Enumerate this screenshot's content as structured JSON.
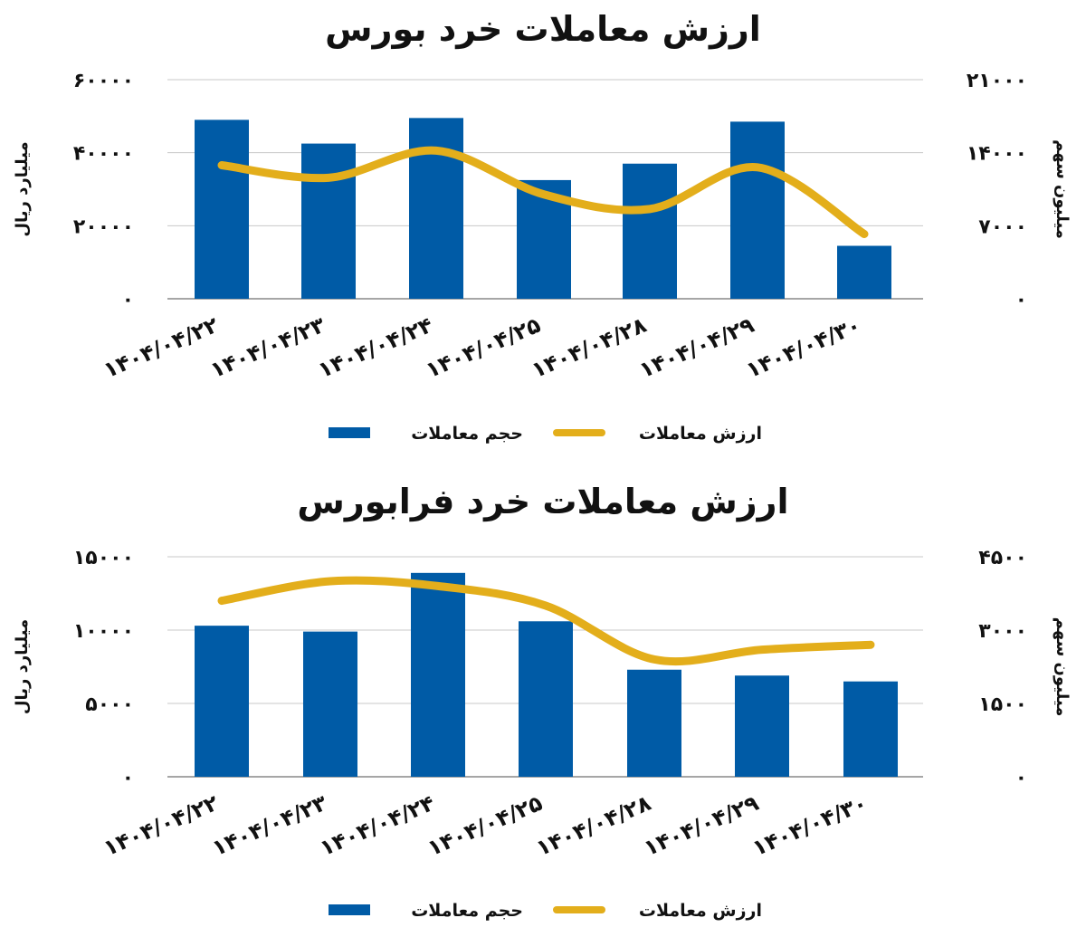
{
  "chart_data": [
    {
      "type": "bar",
      "title": "ارزش معاملات خرد بورس",
      "categories": [
        "۱۴۰۴/۰۴/۲۲",
        "۱۴۰۴/۰۴/۲۳",
        "۱۴۰۴/۰۴/۲۴",
        "۱۴۰۴/۰۴/۲۵",
        "۱۴۰۴/۰۴/۲۸",
        "۱۴۰۴/۰۴/۲۹",
        "۱۴۰۴/۰۴/۳۰"
      ],
      "ylabel_left": "میلیارد ریال",
      "ylabel_right": "میلیون سهم",
      "ylim_left": [
        0,
        60000
      ],
      "ylim_right": [
        0,
        21000
      ],
      "yticks_left": [
        "۶۰۰۰۰",
        "۴۰۰۰۰",
        "۲۰۰۰۰",
        "۰"
      ],
      "yticks_right": [
        "۲۱۰۰۰",
        "۱۴۰۰۰",
        "۷۰۰۰",
        "۰"
      ],
      "grid": true,
      "legend_position": "bottom",
      "series": [
        {
          "name": "حجم معاملات",
          "type": "bar",
          "axis": "left",
          "color": "#005BA6",
          "values": [
            49000,
            42500,
            49500,
            32500,
            37000,
            48500,
            14500
          ]
        },
        {
          "name": "ارزش معاملات",
          "type": "line",
          "axis": "right",
          "color": "#E3AE1B",
          "values": [
            12800,
            11600,
            14200,
            10000,
            8600,
            12600,
            6200
          ]
        }
      ]
    },
    {
      "type": "bar",
      "title": "ارزش معاملات خرد فرابورس",
      "categories": [
        "۱۴۰۴/۰۴/۲۲",
        "۱۴۰۴/۰۴/۲۳",
        "۱۴۰۴/۰۴/۲۴",
        "۱۴۰۴/۰۴/۲۵",
        "۱۴۰۴/۰۴/۲۸",
        "۱۴۰۴/۰۴/۲۹",
        "۱۴۰۴/۰۴/۳۰"
      ],
      "ylabel_left": "میلیارد ریال",
      "ylabel_right": "میلیون سهم",
      "ylim_left": [
        0,
        15000
      ],
      "ylim_right": [
        0,
        4500
      ],
      "yticks_left": [
        "۱۵۰۰۰",
        "۱۰۰۰۰",
        "۵۰۰۰",
        "۰"
      ],
      "yticks_right": [
        "۴۵۰۰",
        "۳۰۰۰",
        "۱۵۰۰",
        "۰"
      ],
      "grid": true,
      "legend_position": "bottom",
      "series": [
        {
          "name": "حجم معاملات",
          "type": "bar",
          "axis": "left",
          "color": "#005BA6",
          "values": [
            10300,
            9900,
            13900,
            10600,
            7300,
            6900,
            6500
          ]
        },
        {
          "name": "ارزش معاملات",
          "type": "line",
          "axis": "right",
          "color": "#E3AE1B",
          "values": [
            3600,
            4000,
            3900,
            3500,
            2400,
            2600,
            2700
          ]
        }
      ]
    }
  ]
}
